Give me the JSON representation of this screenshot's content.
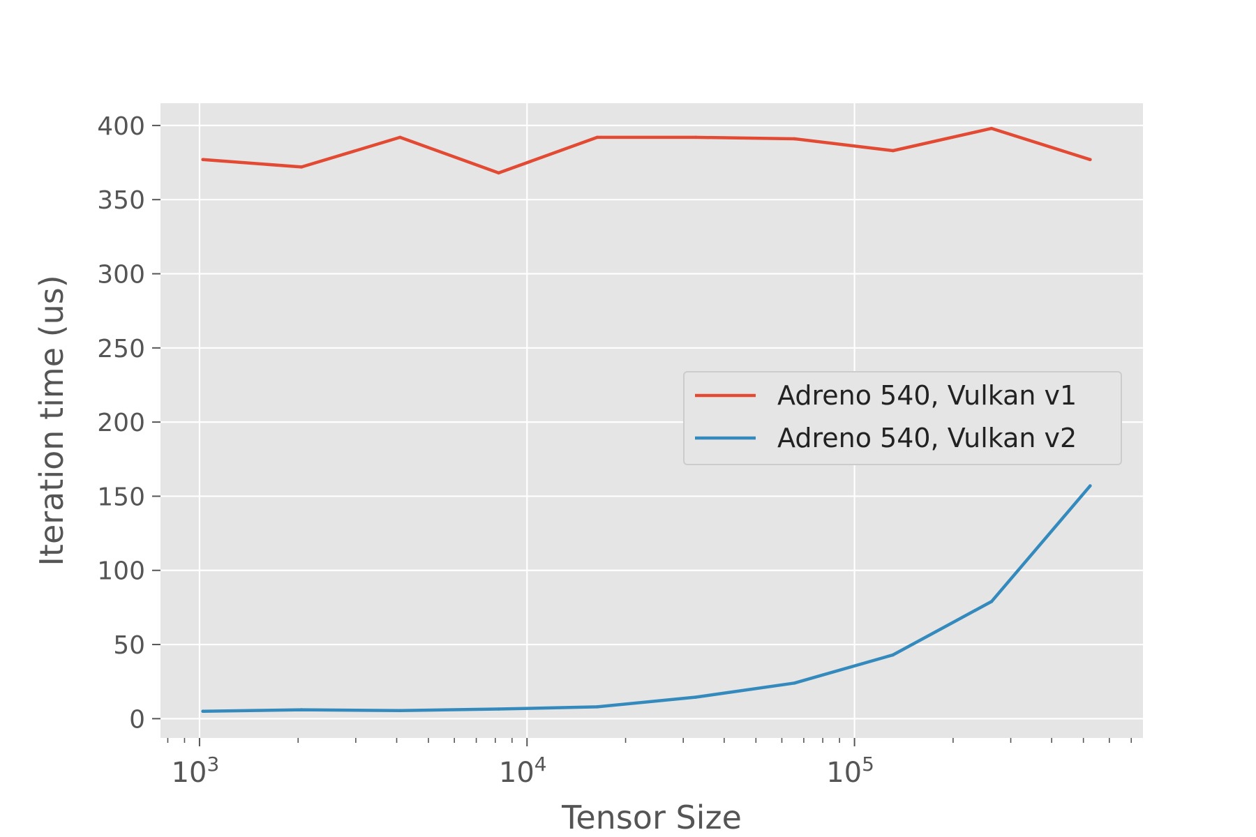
{
  "chart_data": {
    "type": "line",
    "title": "",
    "xlabel": "Tensor Size",
    "ylabel": "Iteration time (us)",
    "xscale": "log",
    "xlim": [
      760,
      760000
    ],
    "ylim": [
      -13,
      415
    ],
    "grid": true,
    "legend_position": "center-right",
    "x": [
      1024,
      2048,
      4096,
      8192,
      16384,
      32768,
      65536,
      131072,
      262144,
      524288
    ],
    "series": [
      {
        "name": "Adreno 540, Vulkan v1",
        "color": "#e24a33",
        "values": [
          377,
          372,
          392,
          368,
          392,
          392,
          391,
          383,
          398,
          377
        ]
      },
      {
        "name": "Adreno 540, Vulkan v2",
        "color": "#348abd",
        "values": [
          5,
          6,
          5.5,
          6.5,
          8,
          14.5,
          24,
          43,
          79,
          157
        ]
      }
    ],
    "y_ticks": [
      0,
      50,
      100,
      150,
      200,
      250,
      300,
      350,
      400
    ],
    "y_tick_labels": [
      "0",
      "50",
      "100",
      "150",
      "200",
      "250",
      "300",
      "350",
      "400"
    ],
    "x_major_ticks": [
      1000,
      10000,
      100000
    ],
    "x_tick_labels": [
      {
        "base": "10",
        "exp": "3"
      },
      {
        "base": "10",
        "exp": "4"
      },
      {
        "base": "10",
        "exp": "5"
      }
    ],
    "style": {
      "plot_background": "#e5e5e5",
      "grid_color": "#ffffff",
      "text_color": "#555555"
    }
  }
}
